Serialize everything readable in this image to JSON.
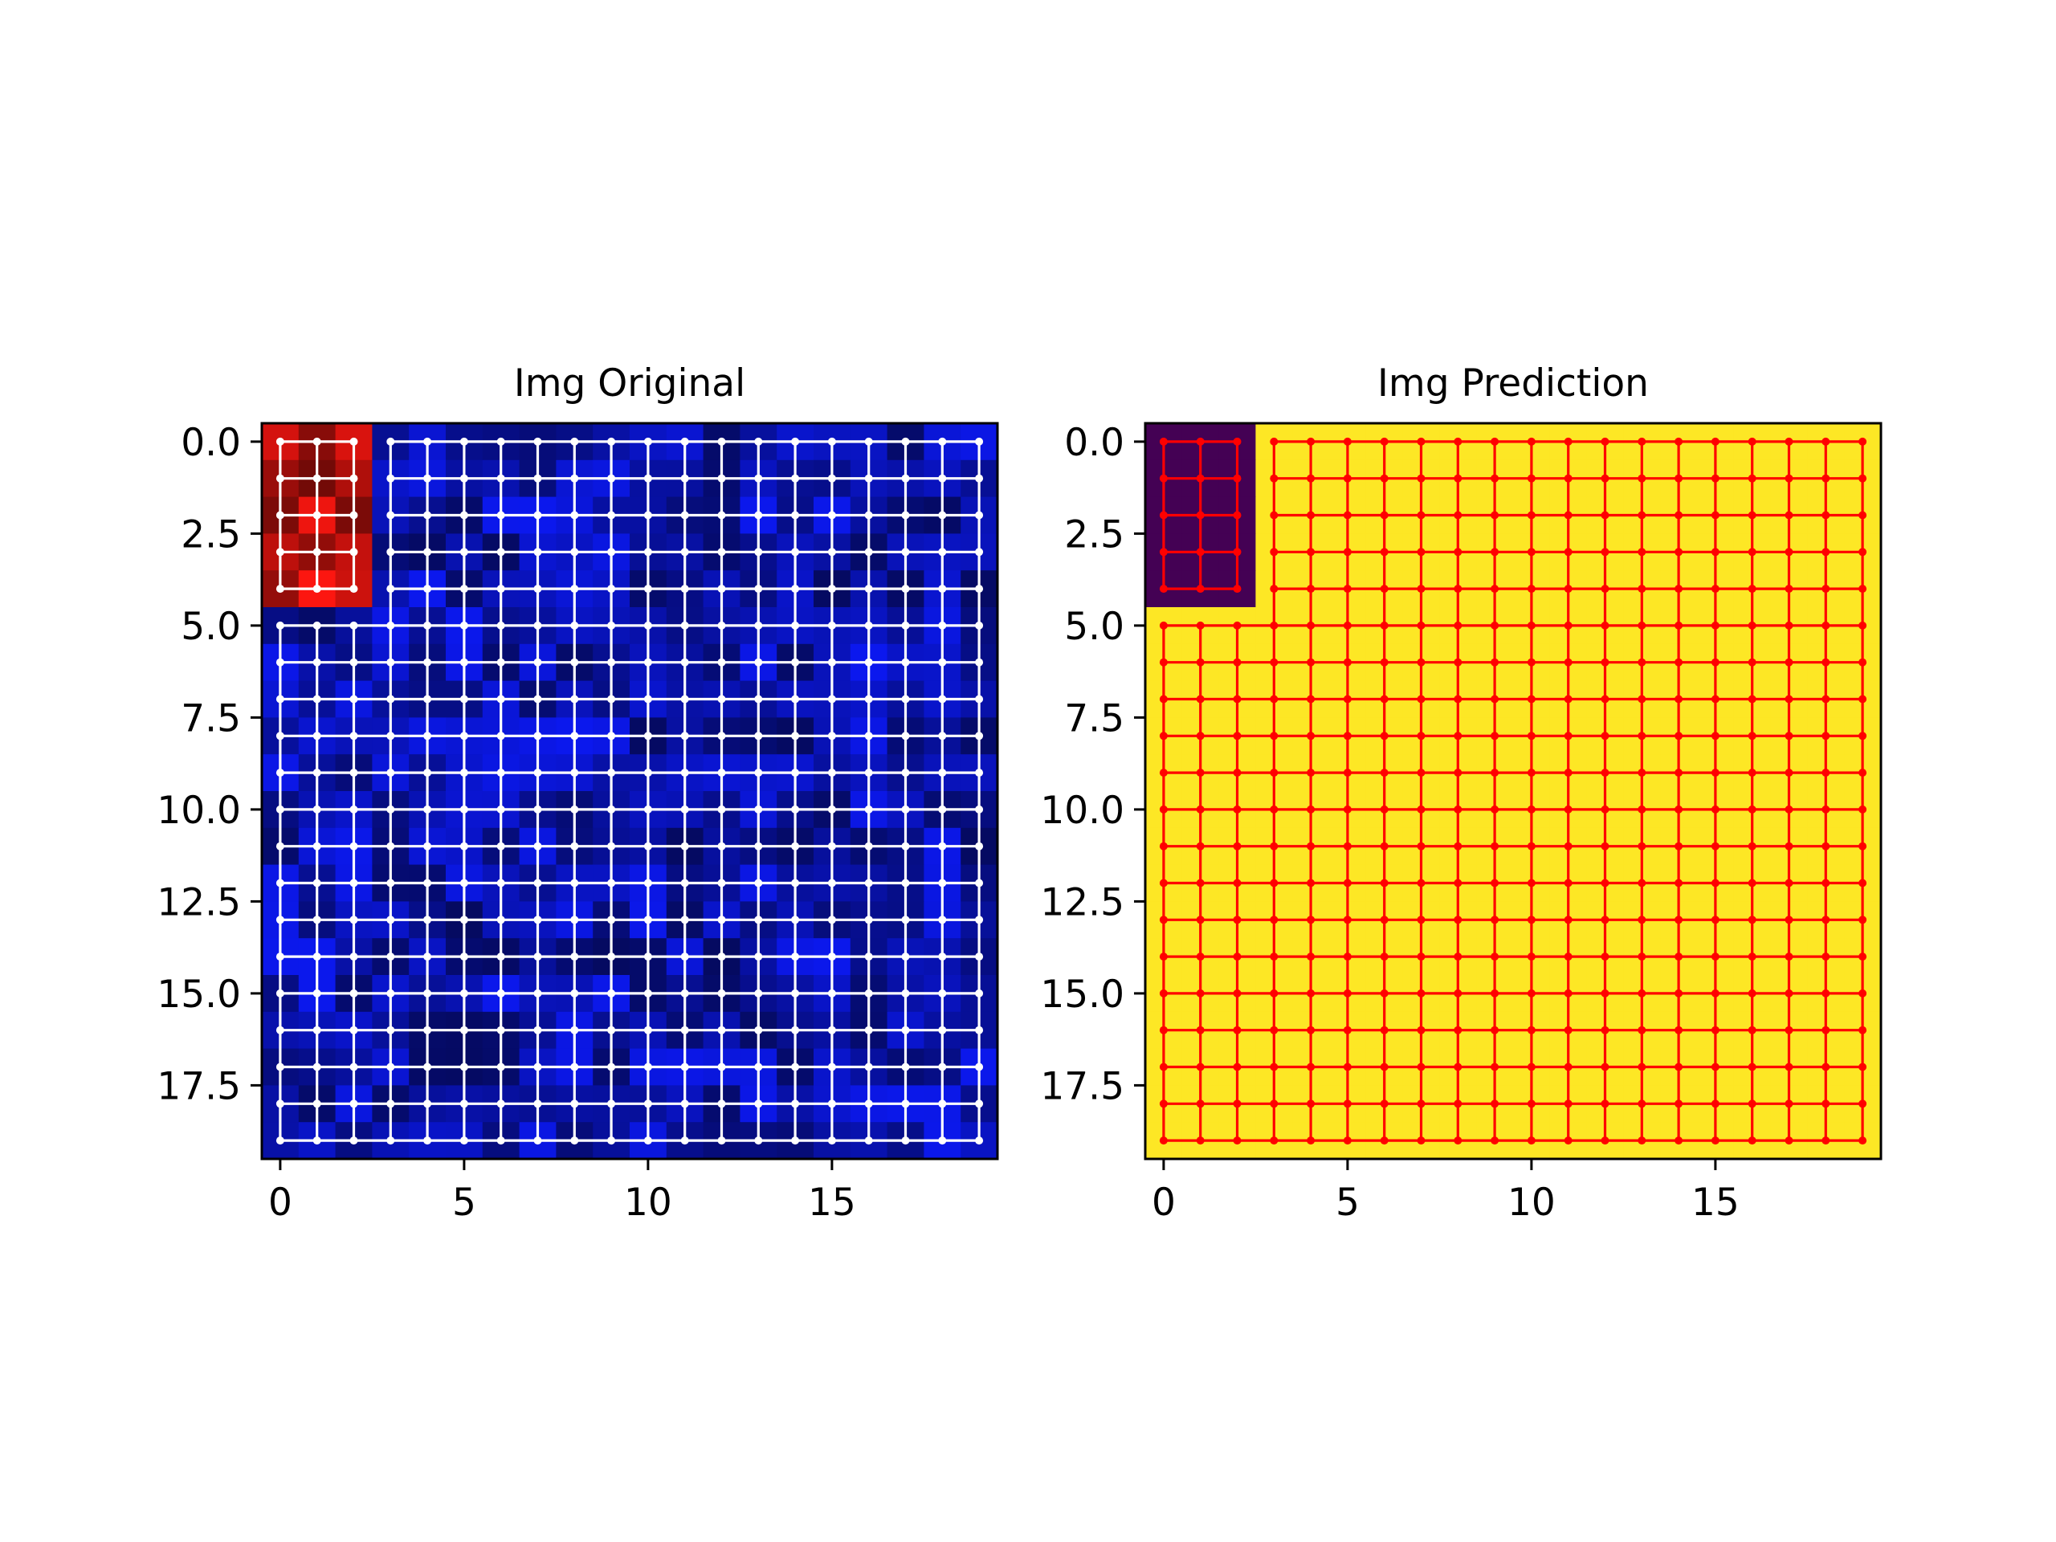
{
  "chart_data": [
    {
      "type": "heatmap",
      "title": "Img Original",
      "xlabel": "",
      "ylabel": "",
      "grid_size": [
        20,
        20
      ],
      "x_ticks": [
        0,
        5,
        10,
        15
      ],
      "x_tick_labels": [
        "0",
        "5",
        "10",
        "15"
      ],
      "y_ticks": [
        0,
        2.5,
        5,
        7.5,
        10,
        12.5,
        15,
        17.5
      ],
      "y_tick_labels": [
        "0.0",
        "2.5",
        "5.0",
        "7.5",
        "10.0",
        "12.5",
        "15.0",
        "17.5"
      ],
      "xlim": [
        -0.5,
        19.5
      ],
      "ylim": [
        19.5,
        -0.5
      ],
      "region": {
        "x_range": [
          0,
          2
        ],
        "y_range": [
          0,
          4
        ],
        "label": "red"
      },
      "background_label": "blue",
      "region_color": "#e8140f",
      "background_color": "#0a16d8",
      "node_grid": {
        "x_range": [
          0,
          19
        ],
        "y_range": [
          0,
          19
        ],
        "edges_removed_between_region_and_background": true
      },
      "edge_color": "#ffffff"
    },
    {
      "type": "heatmap",
      "title": "Img Prediction",
      "xlabel": "",
      "ylabel": "",
      "grid_size": [
        20,
        20
      ],
      "x_ticks": [
        0,
        5,
        10,
        15
      ],
      "x_tick_labels": [
        "0",
        "5",
        "10",
        "15"
      ],
      "y_ticks": [
        0,
        2.5,
        5,
        7.5,
        10,
        12.5,
        15,
        17.5
      ],
      "y_tick_labels": [
        "0.0",
        "2.5",
        "5.0",
        "7.5",
        "10.0",
        "12.5",
        "15.0",
        "17.5"
      ],
      "xlim": [
        -0.5,
        19.5
      ],
      "ylim": [
        19.5,
        -0.5
      ],
      "region": {
        "x_range": [
          0,
          2
        ],
        "y_range": [
          0,
          4
        ],
        "value": 0
      },
      "background_value": 1,
      "region_color": "#440154",
      "background_color": "#fde725",
      "node_grid": {
        "x_range": [
          0,
          19
        ],
        "y_range": [
          0,
          19
        ],
        "edges_removed_between_region_and_background": true
      },
      "edge_color": "#ff0000"
    }
  ]
}
